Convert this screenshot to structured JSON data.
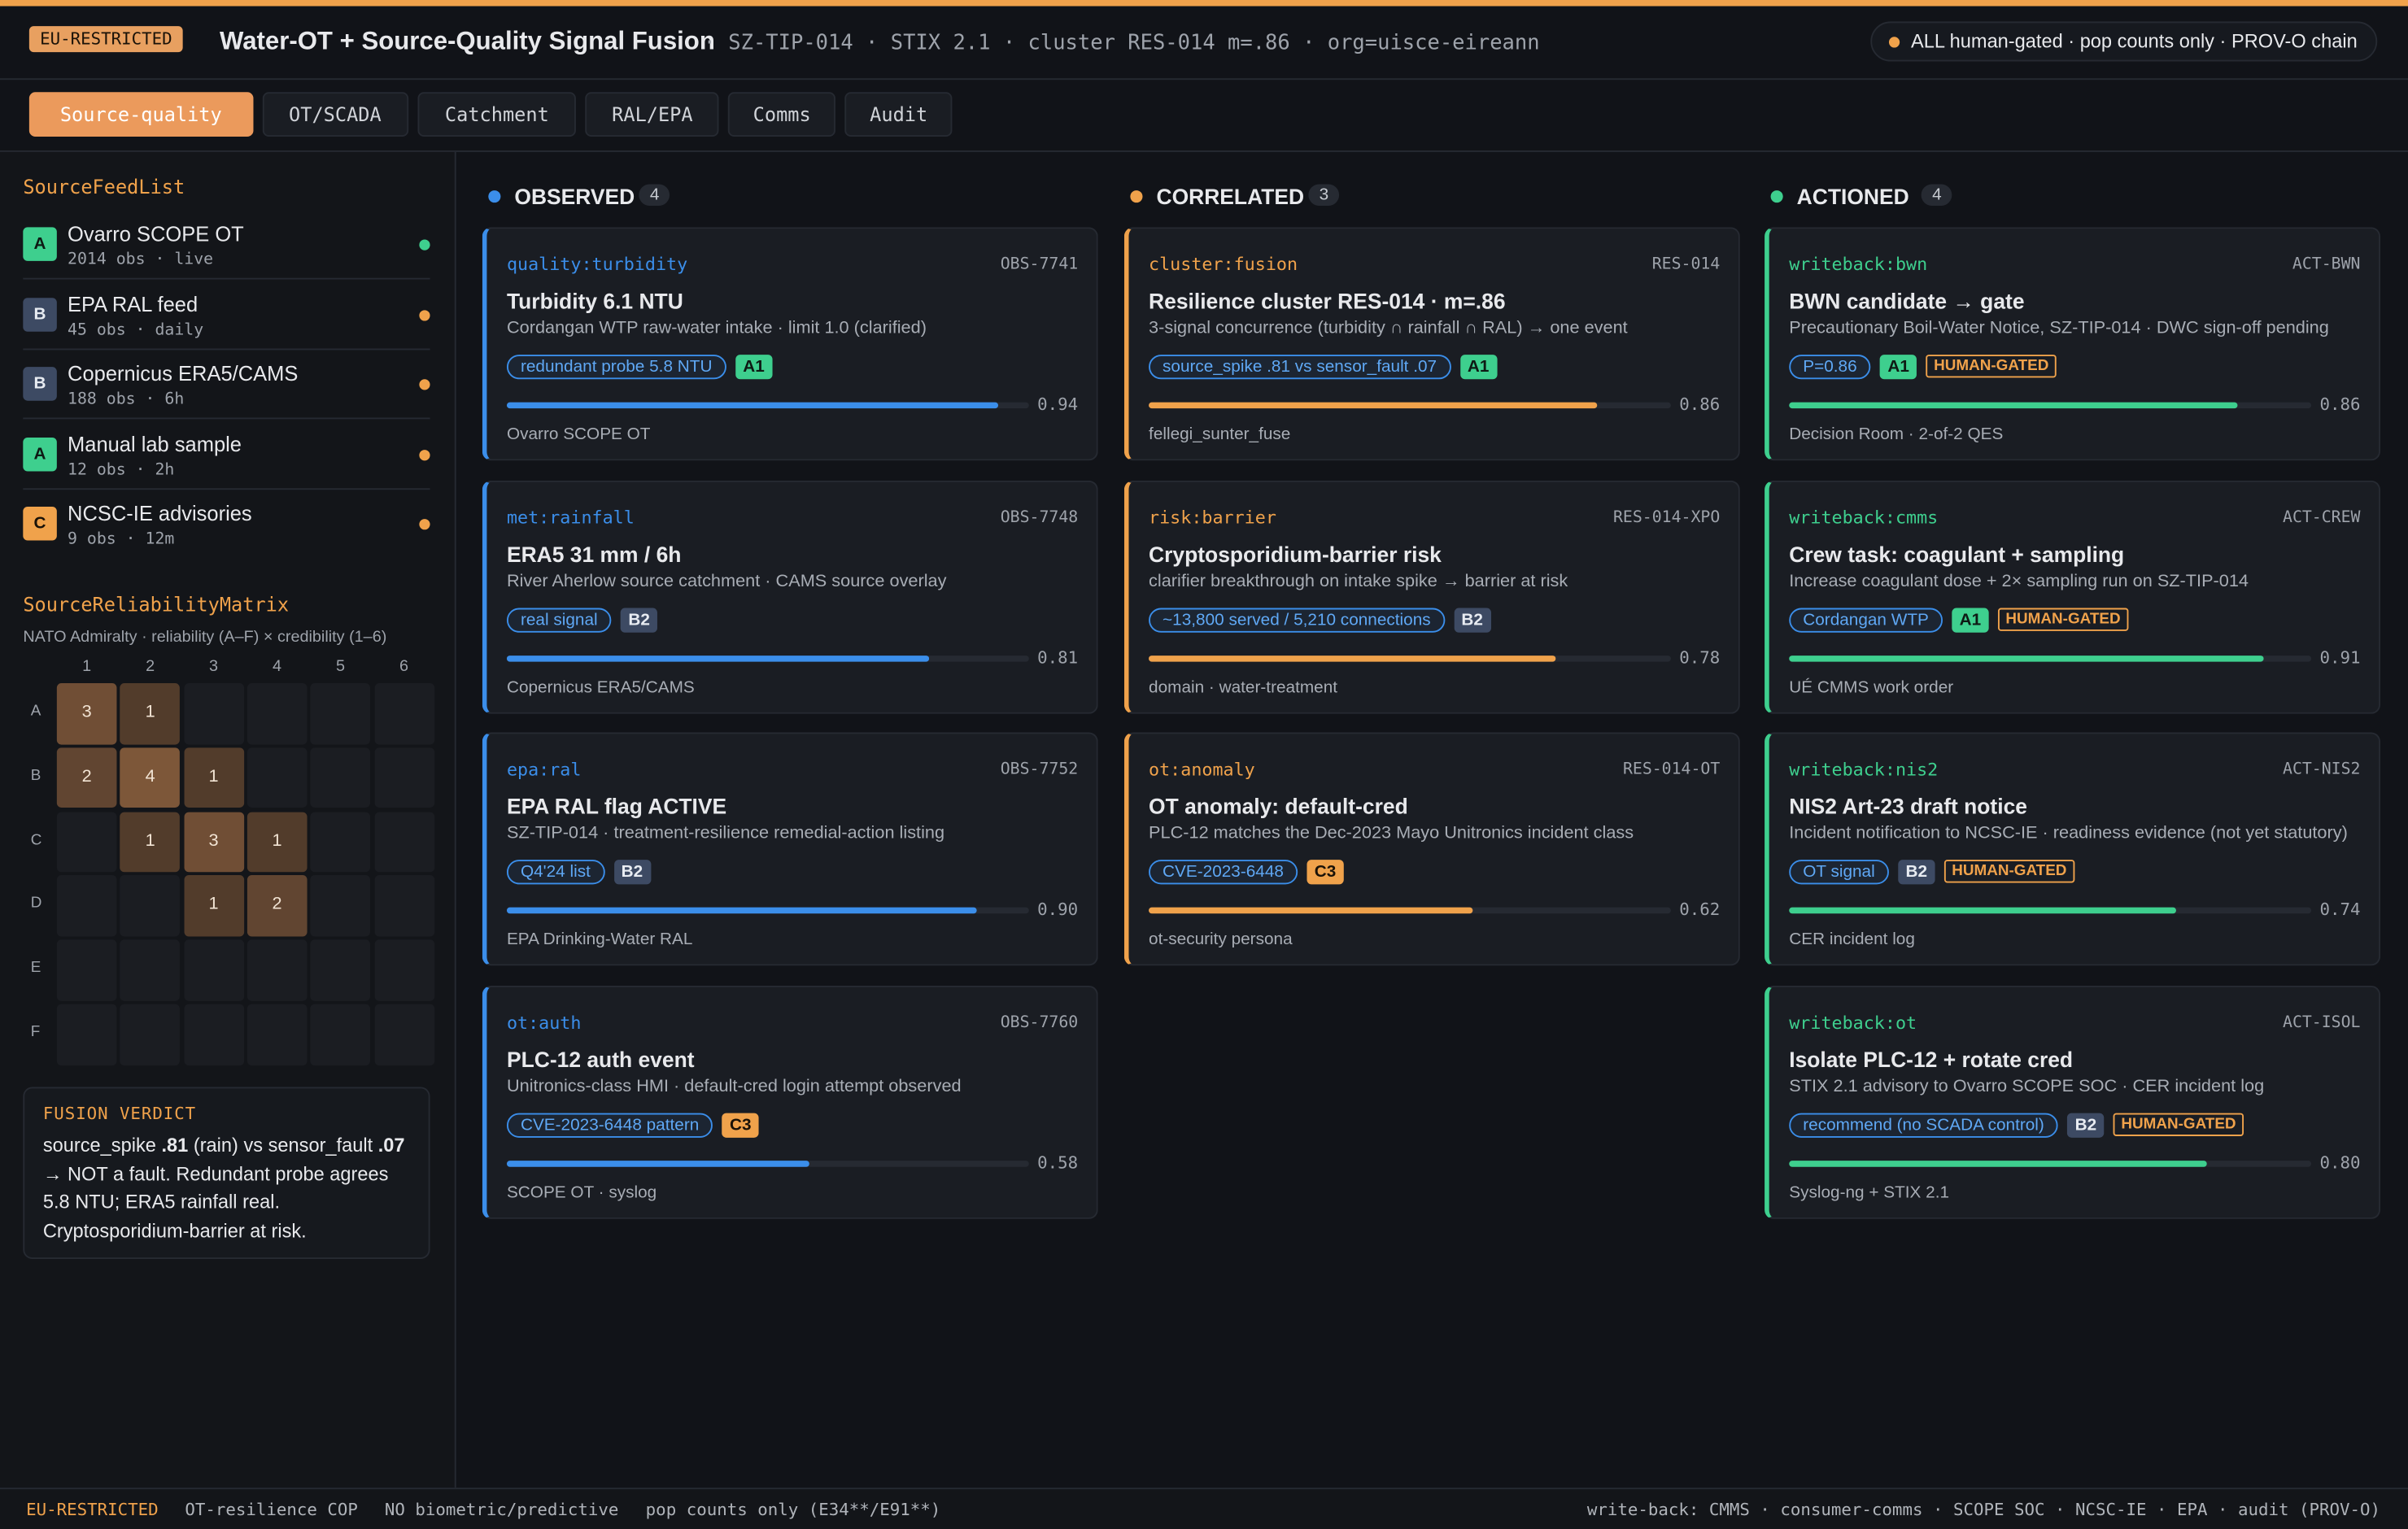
{
  "header": {
    "badge": "EU-RESTRICTED",
    "title": "Water-OT + Source-Quality Signal Fusion",
    "meta": "· SZ-TIP-014 · STIX 2.1 · cluster RES-014 m=.86 · org=uisce-eireann",
    "status": "ALL human-gated · pop counts only · PROV-O chain"
  },
  "tabs": {
    "items": [
      "Source-quality",
      "OT/SCADA",
      "Catchment",
      "RAL/EPA",
      "Comms",
      "Audit"
    ],
    "active": 0
  },
  "sidebar": {
    "feeds_title": "SourceFeedList",
    "feeds": [
      {
        "grade": "A",
        "name": "Ovarro SCOPE OT",
        "meta": "2014 obs · live",
        "dot_color": "#3ecf8e"
      },
      {
        "grade": "B",
        "name": "EPA RAL feed",
        "meta": "45 obs · daily",
        "dot_color": "#f0a24b"
      },
      {
        "grade": "B",
        "name": "Copernicus ERA5/CAMS",
        "meta": "188 obs · 6h",
        "dot_color": "#f0a24b"
      },
      {
        "grade": "A",
        "name": "Manual lab sample",
        "meta": "12 obs · 2h",
        "dot_color": "#f0a24b"
      },
      {
        "grade": "C",
        "name": "NCSC-IE advisories",
        "meta": "9 obs · 12m",
        "dot_color": "#f0a24b"
      }
    ],
    "matrix": {
      "title": "SourceReliabilityMatrix",
      "subtitle": "NATO Admiralty · reliability (A–F) × credibility (1–6)",
      "cols": [
        1,
        2,
        3,
        4,
        5,
        6
      ],
      "rows": [
        "A",
        "B",
        "C",
        "D",
        "E",
        "F"
      ],
      "cells": [
        [
          3,
          1,
          null,
          null,
          null,
          null
        ],
        [
          2,
          4,
          1,
          null,
          null,
          null
        ],
        [
          null,
          1,
          3,
          1,
          null,
          null
        ],
        [
          null,
          null,
          1,
          2,
          null,
          null
        ],
        [
          null,
          null,
          null,
          null,
          null,
          null
        ],
        [
          null,
          null,
          null,
          null,
          null,
          null
        ]
      ]
    },
    "verdict": {
      "title": "FUSION VERDICT",
      "parts": [
        "source_spike ",
        ".81",
        " (rain) vs sensor_fault ",
        ".07",
        " → NOT a fault. Redundant probe agrees 5.8 NTU; ERA5 rainfall real. Cryptosporidium-barrier at risk."
      ]
    }
  },
  "columns": [
    {
      "title": "OBSERVED",
      "count": 4,
      "color": "#3b8eea",
      "cards": [
        {
          "tag": "quality:turbidity",
          "id": "OBS-7741",
          "title": "Turbidity 6.1 NTU",
          "desc": "Cordangan WTP raw-water intake · limit 1.0 (clarified)",
          "chips": [
            "redundant probe 5.8 NTU"
          ],
          "grade": "A1",
          "score": 0.94,
          "source": "Ovarro SCOPE OT"
        },
        {
          "tag": "met:rainfall",
          "id": "OBS-7748",
          "title": "ERA5 31 mm / 6h",
          "desc": "River Aherlow source catchment · CAMS source overlay",
          "chips": [
            "real signal"
          ],
          "grade": "B2",
          "score": 0.81,
          "source": "Copernicus ERA5/CAMS"
        },
        {
          "tag": "epa:ral",
          "id": "OBS-7752",
          "title": "EPA RAL flag ACTIVE",
          "desc": "SZ-TIP-014 · treatment-resilience remedial-action listing",
          "chips": [
            "Q4'24 list"
          ],
          "grade": "B2",
          "score": 0.9,
          "score_label": "0.90",
          "source": "EPA Drinking-Water RAL"
        },
        {
          "tag": "ot:auth",
          "id": "OBS-7760",
          "title": "PLC-12 auth event",
          "desc": "Unitronics-class HMI · default-cred login attempt observed",
          "chips": [
            "CVE-2023-6448 pattern"
          ],
          "grade": "C3",
          "score": 0.58,
          "source": "SCOPE OT · syslog"
        }
      ]
    },
    {
      "title": "CORRELATED",
      "count": 3,
      "color": "#f0a24b",
      "cards": [
        {
          "tag": "cluster:fusion",
          "id": "RES-014",
          "title": "Resilience cluster RES-014 · m=.86",
          "desc": "3-signal concurrence (turbidity ∩ rainfall ∩ RAL) → one event",
          "chips": [
            "source_spike .81 vs sensor_fault .07"
          ],
          "grade": "A1",
          "score": 0.86,
          "source": "fellegi_sunter_fuse"
        },
        {
          "tag": "risk:barrier",
          "id": "RES-014-XPO",
          "title": "Cryptosporidium-barrier risk",
          "desc": "clarifier breakthrough on intake spike → barrier at risk",
          "chips": [
            "~13,800 served / 5,210 connections"
          ],
          "grade": "B2",
          "score": 0.78,
          "source": "domain · water-treatment"
        },
        {
          "tag": "ot:anomaly",
          "id": "RES-014-OT",
          "title": "OT anomaly: default-cred",
          "desc": "PLC-12 matches the Dec-2023 Mayo Unitronics incident class",
          "chips": [
            "CVE-2023-6448"
          ],
          "grade": "C3",
          "score": 0.62,
          "source": "ot-security persona"
        }
      ]
    },
    {
      "title": "ACTIONED",
      "count": 4,
      "color": "#3ecf8e",
      "cards": [
        {
          "tag": "writeback:bwn",
          "id": "ACT-BWN",
          "title": "BWN candidate → gate",
          "desc": "Precautionary Boil-Water Notice, SZ-TIP-014 · DWC sign-off pending",
          "chips": [
            "P=0.86"
          ],
          "grade": "A1",
          "gate": "HUMAN-GATED",
          "score": 0.86,
          "source": "Decision Room · 2-of-2 QES"
        },
        {
          "tag": "writeback:cmms",
          "id": "ACT-CREW",
          "title": "Crew task: coagulant + sampling",
          "desc": "Increase coagulant dose + 2× sampling run on SZ-TIP-014",
          "chips": [
            "Cordangan WTP"
          ],
          "grade": "A1",
          "gate": "HUMAN-GATED",
          "score": 0.91,
          "source": "UÉ CMMS work order"
        },
        {
          "tag": "writeback:nis2",
          "id": "ACT-NIS2",
          "title": "NIS2 Art-23 draft notice",
          "desc": "Incident notification to NCSC-IE · readiness evidence (not yet statutory)",
          "chips": [
            "OT signal"
          ],
          "grade": "B2",
          "gate": "HUMAN-GATED",
          "score": 0.74,
          "source": "CER incident log"
        },
        {
          "tag": "writeback:ot",
          "id": "ACT-ISOL",
          "title": "Isolate PLC-12 + rotate cred",
          "desc": "STIX 2.1 advisory to Ovarro SCOPE SOC · CER incident log",
          "chips": [
            "recommend (no SCADA control)"
          ],
          "grade": "B2",
          "gate": "HUMAN-GATED",
          "score": 0.8,
          "score_label": "0.80",
          "source": "Syslog-ng + STIX 2.1"
        }
      ]
    }
  ],
  "footer": {
    "left": [
      "EU-RESTRICTED",
      "OT-resilience COP",
      "NO biometric/predictive",
      "pop counts only (E34**/E91**)"
    ],
    "right": "write-back: CMMS · consumer-comms · SCOPE SOC · NCSC-IE · EPA · audit (PROV-O)"
  }
}
